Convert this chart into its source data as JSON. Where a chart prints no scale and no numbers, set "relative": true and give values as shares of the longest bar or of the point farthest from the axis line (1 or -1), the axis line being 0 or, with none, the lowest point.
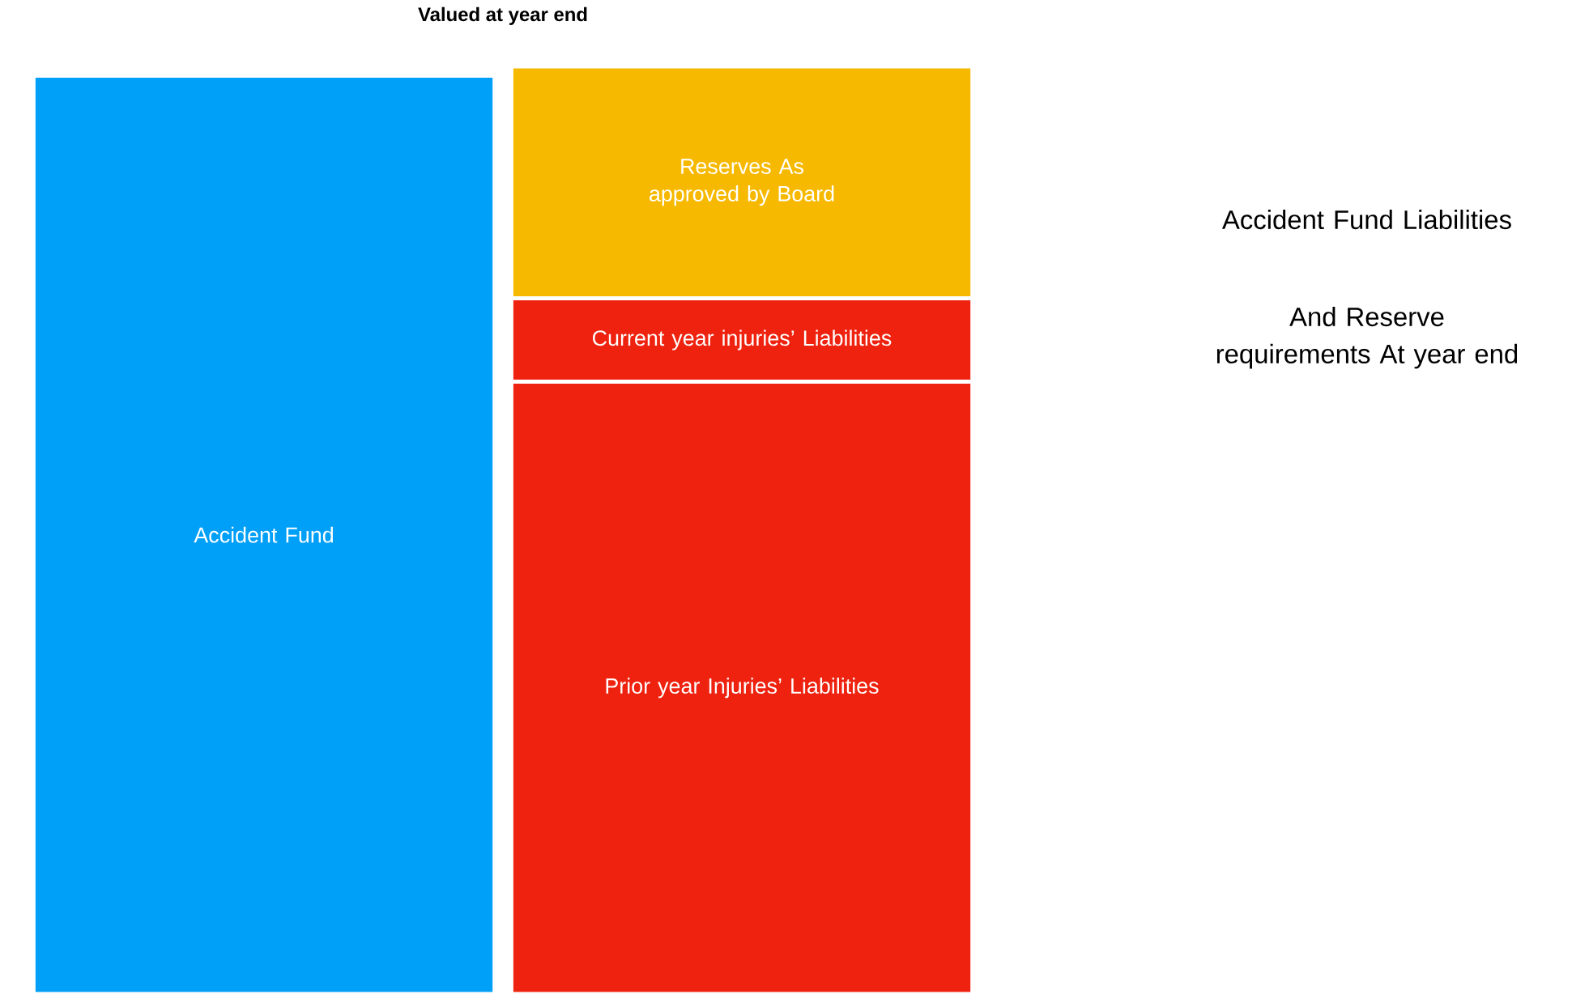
{
  "chart_data": {
    "type": "bar",
    "stacked": true,
    "relative": true,
    "title": "Valued at year end",
    "categories": [
      null,
      null
    ],
    "series": [
      {
        "name": "Accident Fund",
        "color": "#00a0f8",
        "values": [
          0.99,
          null
        ]
      },
      {
        "name": "Prior year Injuries’ Liabilities",
        "color": "#ee220f",
        "values": [
          null,
          0.66
        ]
      },
      {
        "name": "Current year  injuries’ Liabilities",
        "color": "#ee220f",
        "values": [
          null,
          0.09
        ]
      },
      {
        "name": "Reserves As approved by Board",
        "color": "#f6b900",
        "values": [
          null,
          0.25
        ]
      }
    ],
    "annotations": [
      "Accident Fund Liabilities",
      "And Reserve requirements At year end"
    ]
  }
}
